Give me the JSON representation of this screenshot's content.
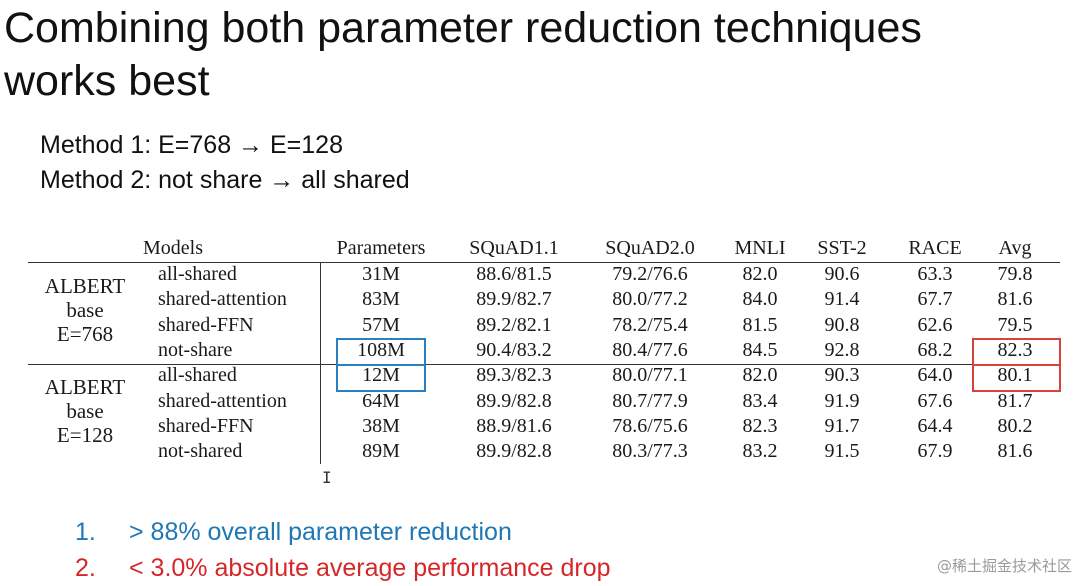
{
  "slide": {
    "title_line1": "Combining both parameter reduction techniques",
    "title_line2": "works best",
    "method1": "Method 1: E=768 → E=128",
    "method2": "Method 2: not share → all shared"
  },
  "table": {
    "headers": [
      "Models",
      "Parameters",
      "SQuAD1.1",
      "SQuAD2.0",
      "MNLI",
      "SST-2",
      "RACE",
      "Avg"
    ],
    "groups": [
      {
        "label_lines": [
          "ALBERT",
          "base",
          "E=768"
        ],
        "rows": [
          [
            "all-shared",
            "31M",
            "88.6/81.5",
            "79.2/76.6",
            "82.0",
            "90.6",
            "63.3",
            "79.8"
          ],
          [
            "shared-attention",
            "83M",
            "89.9/82.7",
            "80.0/77.2",
            "84.0",
            "91.4",
            "67.7",
            "81.6"
          ],
          [
            "shared-FFN",
            "57M",
            "89.2/82.1",
            "78.2/75.4",
            "81.5",
            "90.8",
            "62.6",
            "79.5"
          ],
          [
            "not-share",
            "108M",
            "90.4/83.2",
            "80.4/77.6",
            "84.5",
            "92.8",
            "68.2",
            "82.3"
          ]
        ]
      },
      {
        "label_lines": [
          "ALBERT",
          "base",
          "E=128"
        ],
        "rows": [
          [
            "all-shared",
            "12M",
            "89.3/82.3",
            "80.0/77.1",
            "82.0",
            "90.3",
            "64.0",
            "80.1"
          ],
          [
            "shared-attention",
            "64M",
            "89.9/82.8",
            "80.7/77.9",
            "83.4",
            "91.9",
            "67.6",
            "81.7"
          ],
          [
            "shared-FFN",
            "38M",
            "88.9/81.6",
            "78.6/75.6",
            "82.3",
            "91.7",
            "64.4",
            "80.2"
          ],
          [
            "not-shared",
            "89M",
            "89.9/82.8",
            "80.3/77.3",
            "83.2",
            "91.5",
            "67.9",
            "81.6"
          ]
        ]
      }
    ]
  },
  "bullets": [
    {
      "num": "1.",
      "text": "> 88% overall parameter reduction",
      "color": "#1f77b4"
    },
    {
      "num": "2.",
      "text": "< 3.0% absolute average performance drop",
      "color": "#d62728"
    }
  ],
  "highlight_colors": {
    "params_box": "#2a7fc0",
    "avg_box": "#d9413c"
  },
  "watermark": "@稀土掘金技术社区"
}
